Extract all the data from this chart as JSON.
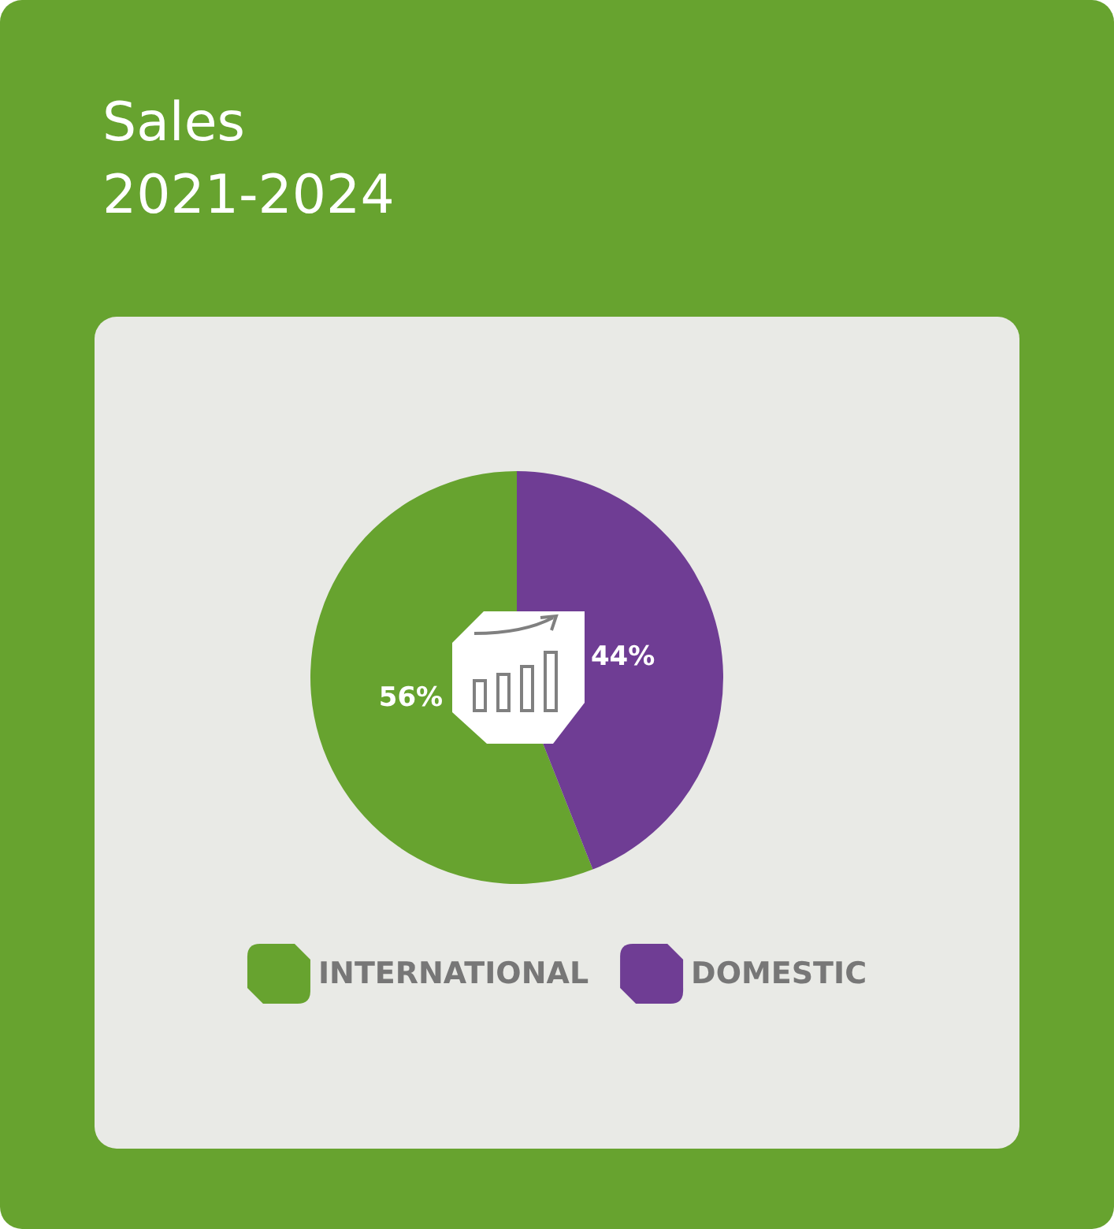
{
  "chart_data": {
    "type": "pie",
    "title": "Sales",
    "subtitle": "2021-2024",
    "categories": [
      "INTERNATIONAL",
      "DOMESTIC"
    ],
    "values": [
      56,
      44
    ],
    "colors": [
      "#67a32f",
      "#6f3d94"
    ],
    "value_labels": [
      "56%",
      "44%"
    ],
    "legend": "bottom"
  }
}
